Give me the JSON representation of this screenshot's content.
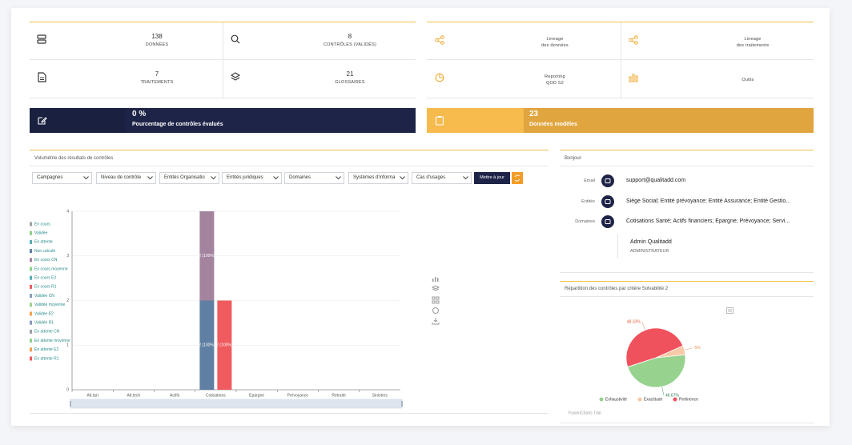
{
  "stats": [
    {
      "value": 138,
      "label": "DONNÉES"
    },
    {
      "value": 8,
      "label": "CONTRÔLES (VALIDÉS)"
    },
    {
      "value": 7,
      "label": "TRAITEMENTS"
    },
    {
      "value": 21,
      "label": "GLOSSAIRES"
    }
  ],
  "links": [
    {
      "lines": [
        "Lineage",
        "des données"
      ]
    },
    {
      "lines": [
        "Lineage",
        "des traitements"
      ]
    },
    {
      "lines": [
        "Reporting",
        "QOD S2"
      ]
    },
    {
      "lines": [
        "Outils"
      ]
    }
  ],
  "banners": [
    {
      "value": "0 %",
      "label": "Pourcentage de contrôles évalués"
    },
    {
      "value": 23,
      "label": "Données modèles"
    }
  ],
  "filters": [
    "Campagnes",
    "Niveau de contrôle",
    "Entités Organisatio",
    "Entités juridiques",
    "Domaines",
    "Systèmes d'informa",
    "Cas d'usages"
  ],
  "update_button": "Mettre à jour",
  "profile": {
    "title": "Bonjour",
    "rows": [
      {
        "label": "Email",
        "value": "support@qualitadd.com"
      },
      {
        "label": "Entités",
        "value": "Siège Social; Entité prévoyance; Entité Assurance; Entité Gestio..."
      },
      {
        "label": "Domaines",
        "value": "Cotisations Santé; Actifs financiers; Epargne; Prévoyance; Servi..."
      }
    ],
    "name": "Admin Qualitadd",
    "role": "ADMINISTRATEUR"
  },
  "chart_data": [
    {
      "type": "bar",
      "title": "Volumétrie des résultats de contrôles",
      "categories": [
        "Alt.tarl",
        "Alt.tech",
        "Actifs",
        "Cotisations",
        "Epargne",
        "Prévoyance",
        "Retraite",
        "Sinistres"
      ],
      "ylim": [
        0,
        4
      ],
      "yticks": [
        0,
        1,
        2,
        3,
        4
      ],
      "grid": true,
      "legend": "left",
      "series": [
        {
          "name": "En cours",
          "color": "#9aa0a6",
          "stack": 0,
          "values": [
            0,
            0,
            0,
            0,
            0,
            0,
            0,
            0
          ]
        },
        {
          "name": "Validée",
          "color": "#8fcf8a",
          "stack": 0,
          "values": [
            0,
            0,
            0,
            0,
            0,
            0,
            0,
            0
          ]
        },
        {
          "name": "En attente",
          "color": "#5aaab7",
          "stack": 0,
          "values": [
            0,
            0,
            0,
            0,
            0,
            0,
            0,
            0
          ]
        },
        {
          "name": "Non calculé",
          "color": "#5f7fa3",
          "stack": 0,
          "values": [
            0,
            0,
            0,
            2,
            0,
            0,
            0,
            0
          ],
          "value_labels": [
            null,
            null,
            null,
            "2 (100%)",
            null,
            null,
            null,
            null
          ]
        },
        {
          "name": "En cours CN",
          "color": "#a3839e",
          "stack": 0,
          "values": [
            0,
            0,
            0,
            2,
            0,
            0,
            0,
            0
          ],
          "value_labels": [
            null,
            null,
            null,
            "2 (100%)",
            null,
            null,
            null,
            null
          ]
        },
        {
          "name": "En cours moyenne",
          "color": "#8fcf8a",
          "stack": 0,
          "values": [
            0,
            0,
            0,
            0,
            0,
            0,
            0,
            0
          ]
        },
        {
          "name": "En cours E2",
          "color": "#5aaab7",
          "stack": 0,
          "values": [
            0,
            0,
            0,
            0,
            0,
            0,
            0,
            0
          ]
        },
        {
          "name": "En cours R1",
          "color": "#ef5b5f",
          "stack": 1,
          "values": [
            0,
            0,
            0,
            2,
            0,
            0,
            0,
            0
          ],
          "value_labels": [
            null,
            null,
            null,
            "2 (100%)",
            null,
            null,
            null,
            null
          ]
        },
        {
          "name": "Validée CN",
          "color": "#8a9cb5",
          "stack": 0,
          "values": [
            0,
            0,
            0,
            0,
            0,
            0,
            0,
            0
          ]
        },
        {
          "name": "Validée moyenne",
          "color": "#9ed08f",
          "stack": 0,
          "values": [
            0,
            0,
            0,
            0,
            0,
            0,
            0,
            0
          ]
        },
        {
          "name": "Validée E2",
          "color": "#f2a04c",
          "stack": 0,
          "values": [
            0,
            0,
            0,
            0,
            0,
            0,
            0,
            0
          ]
        },
        {
          "name": "Validée R1",
          "color": "#8a96c0",
          "stack": 0,
          "values": [
            0,
            0,
            0,
            0,
            0,
            0,
            0,
            0
          ]
        },
        {
          "name": "En attente CN",
          "color": "#9aa0a6",
          "stack": 0,
          "values": [
            0,
            0,
            0,
            0,
            0,
            0,
            0,
            0
          ]
        },
        {
          "name": "En attente moyenne",
          "color": "#8fcf8a",
          "stack": 0,
          "values": [
            0,
            0,
            0,
            0,
            0,
            0,
            0,
            0
          ]
        },
        {
          "name": "En attente E2",
          "color": "#f2a04c",
          "stack": 0,
          "values": [
            0,
            0,
            0,
            0,
            0,
            0,
            0,
            0
          ]
        },
        {
          "name": "En attente R1",
          "color": "#ef5b5f",
          "stack": 0,
          "values": [
            0,
            0,
            0,
            0,
            0,
            0,
            0,
            0
          ]
        }
      ]
    },
    {
      "type": "pie",
      "title": "Répartition des contrôles par critère Solvabilité 2",
      "categories": [
        "Exhaustivité",
        "Exactitude",
        "Pertinence"
      ],
      "values": [
        46.67,
        5,
        48.33
      ],
      "value_labels": [
        "46.67%",
        "5%",
        "48.33%"
      ],
      "colors": [
        "#97d38f",
        "#f7c9a6",
        "#f0525d"
      ],
      "label_colors": [
        "#2f7a4a",
        "#e08a4a",
        "#e0603a"
      ],
      "legend": "bottom",
      "credit": "FusionCharts Trial"
    }
  ]
}
